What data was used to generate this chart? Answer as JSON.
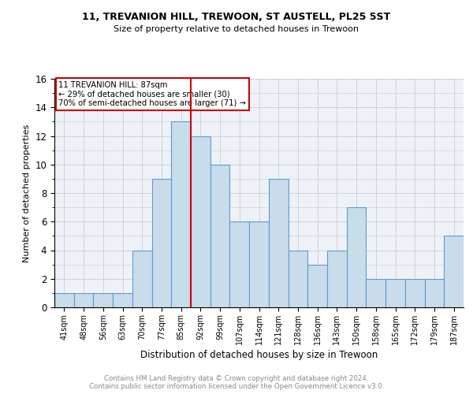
{
  "title1": "11, TREVANION HILL, TREWOON, ST AUSTELL, PL25 5ST",
  "title2": "Size of property relative to detached houses in Trewoon",
  "xlabel": "Distribution of detached houses by size in Trewoon",
  "ylabel": "Number of detached properties",
  "categories": [
    "41sqm",
    "48sqm",
    "56sqm",
    "63sqm",
    "70sqm",
    "77sqm",
    "85sqm",
    "92sqm",
    "99sqm",
    "107sqm",
    "114sqm",
    "121sqm",
    "128sqm",
    "136sqm",
    "143sqm",
    "150sqm",
    "158sqm",
    "165sqm",
    "172sqm",
    "179sqm",
    "187sqm"
  ],
  "values": [
    1,
    1,
    1,
    1,
    4,
    9,
    13,
    12,
    10,
    6,
    6,
    9,
    4,
    3,
    4,
    7,
    2,
    2,
    2,
    2,
    5
  ],
  "bar_color": "#c9dcea",
  "bar_edge_color": "#5b9bd5",
  "red_line_index": 6.5,
  "annotation_line1": "11 TREVANION HILL: 87sqm",
  "annotation_line2": "← 29% of detached houses are smaller (30)",
  "annotation_line3": "70% of semi-detached houses are larger (71) →",
  "annotation_box_edge_color": "#cc0000",
  "red_line_color": "#cc0000",
  "ylim": [
    0,
    16
  ],
  "yticks": [
    0,
    2,
    4,
    6,
    8,
    10,
    12,
    14,
    16
  ],
  "grid_color": "#cccccc",
  "footer_line1": "Contains HM Land Registry data © Crown copyright and database right 2024.",
  "footer_line2": "Contains public sector information licensed under the Open Government Licence v3.0.",
  "bg_color": "#eef2f7"
}
